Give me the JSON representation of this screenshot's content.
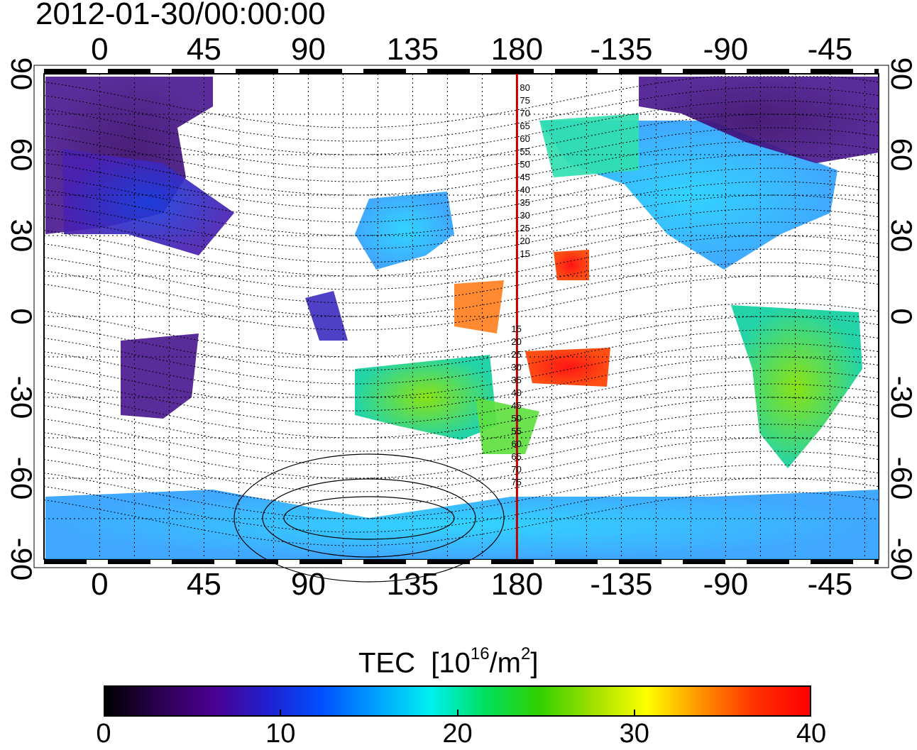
{
  "timestamp": "2012-01-30/00:00:00",
  "map": {
    "lon_ticks": [
      "0",
      "45",
      "90",
      "135",
      "180",
      "-135",
      "-90",
      "-45"
    ],
    "lat_ticks": [
      "90",
      "60",
      "30",
      "0",
      "-30",
      "-60",
      "-90"
    ],
    "magnetic_latitudes_north": [
      "80",
      "75",
      "70",
      "65",
      "60",
      "55",
      "50",
      "45",
      "40",
      "35",
      "30",
      "25",
      "20",
      "15"
    ],
    "magnetic_latitudes_south": [
      "15",
      "20",
      "25",
      "30",
      "35",
      "40",
      "45",
      "50",
      "55",
      "60",
      "65",
      "70",
      "75"
    ],
    "highlight_meridian": "180",
    "highlight_color": "#c00000"
  },
  "colorbar": {
    "title": "TEC",
    "unit_base": "[10",
    "unit_exp": "16",
    "unit_mid": "/m",
    "unit_exp2": "2",
    "unit_end": "]",
    "ticks": [
      "0",
      "10",
      "20",
      "30",
      "40"
    ],
    "range": [
      0,
      40
    ],
    "colormap": [
      "#000000",
      "#2a0050",
      "#4b0090",
      "#2020d0",
      "#0050ff",
      "#00a0ff",
      "#00f0f0",
      "#00e060",
      "#30d000",
      "#a0e000",
      "#ffff00",
      "#ff9000",
      "#ff3000",
      "#ff0000"
    ]
  }
}
